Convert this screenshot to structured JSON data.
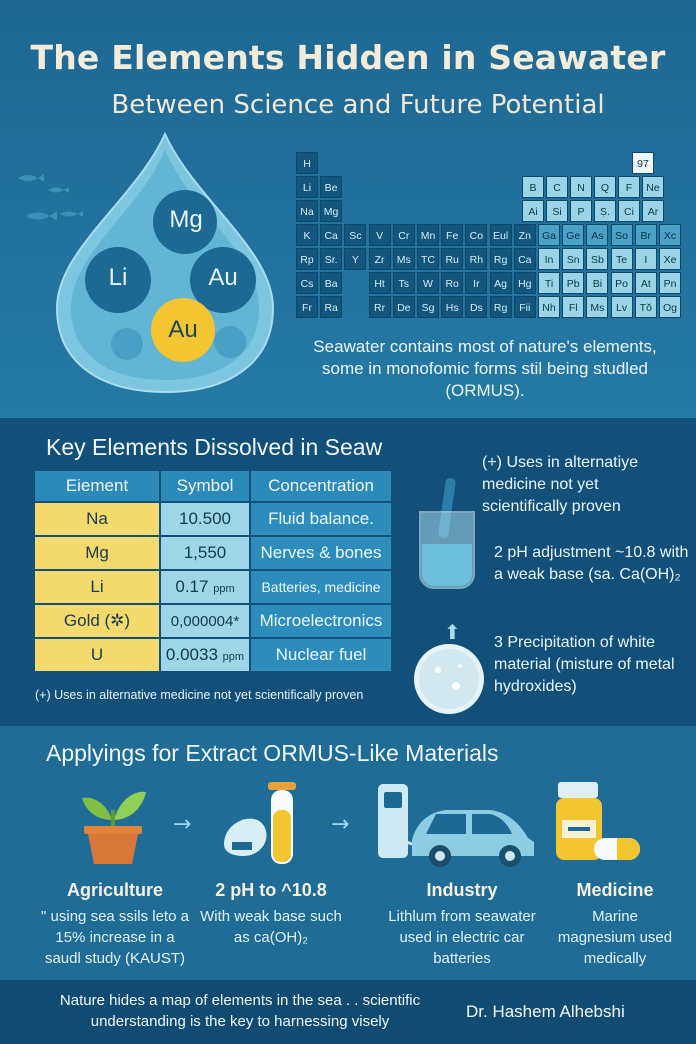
{
  "header": {
    "title": "The Elements Hidden in Seawater",
    "subtitle": "Between Science and Future Potential"
  },
  "drop": {
    "labels": [
      "Mg",
      "Li",
      "Au",
      "Au"
    ]
  },
  "periodic_table": {
    "corner_number": "97",
    "rows": [
      [
        "H"
      ],
      [
        "Li",
        "Be",
        "B",
        "C",
        "N",
        "Q",
        "F",
        "Ne"
      ],
      [
        "Na",
        "Mg",
        "Ai",
        "Si",
        "P",
        "Ṣ.",
        "Ci",
        "Ar"
      ],
      [
        "K",
        "Ca",
        "Sc",
        "V",
        "Cr",
        "Mn",
        "Fe",
        "Co",
        "Eul",
        "Zn",
        "Ga",
        "Ge",
        "As",
        "So",
        "Br",
        "Xc"
      ],
      [
        "Rp",
        "Sr.",
        "Y",
        "Zr",
        "Ms",
        "TC",
        "Ru",
        "Rh",
        "Rg",
        "Ca",
        "In",
        "Sn",
        "Sb",
        "Te",
        "I",
        "Xe"
      ],
      [
        "Cs",
        "Ba",
        "Ht",
        "Ts",
        "W",
        "Ro",
        "Ir",
        "Ag",
        "Hg",
        "Ti",
        "Pb",
        "Bi",
        "Po",
        "At",
        "Pn"
      ],
      [
        "Fr",
        "Ra",
        "Rr",
        "De",
        "Sg",
        "Hs",
        "Ds",
        "Rg",
        "Fii",
        "Nh",
        "Fl",
        "Ms",
        "Lv",
        "Tŏ",
        "Og"
      ]
    ]
  },
  "intro": {
    "text": "Seawater contains most of nature's elements, some in monofomic forms stil being studled (ORMUS)."
  },
  "key_elements": {
    "title": "Key Elements Dissolved in Seaw",
    "headers": [
      "Eiement",
      "Symbol",
      "Concentration"
    ],
    "rows": [
      {
        "element": "Na",
        "value": "10.500",
        "unit": "",
        "use": "Fluid balance."
      },
      {
        "element": "Mg",
        "value": "1,550",
        "unit": "",
        "use": "Nerves & bones"
      },
      {
        "element": "Li",
        "value": "0.17",
        "unit": "ppm",
        "use": "Batteries, medicine"
      },
      {
        "element": "Gold (✲)",
        "value": "0,000004*",
        "unit": "",
        "use": "Microelectronics"
      },
      {
        "element": "U",
        "value": "0.0033",
        "unit": "ppm",
        "use": "Nuclear fuel"
      }
    ],
    "footnote": "(+)  Uses in alternative medicine not yet scientifically proven"
  },
  "process_notes": [
    {
      "num": "(+)",
      "text": "Uses in alternatiye medicine not yet scientifically proven"
    },
    {
      "num": "2",
      "text": "pH adjustment ~10.8 with a weak base (sa. Ca(OH)₂"
    },
    {
      "num": "3",
      "text": "Precipitation of white material (misture of metal hydroxides)"
    }
  ],
  "applications": {
    "title": "Applyings for Extract ORMUS-Like Materials",
    "items": [
      {
        "heading": "Agriculture",
        "text": "\" using sea ssils leto a 15% increase in a saudl study (KAUST)"
      },
      {
        "heading": "2  pH to ^10.8",
        "text": "With weak base such as ca(OH)₂"
      },
      {
        "heading": "Industry",
        "text": "Lithlum from seawater used in electric car batteries"
      },
      {
        "heading": "Medicine",
        "text": "Marine magnesium used medically"
      }
    ]
  },
  "footer": {
    "text": "Nature hides a map of elements in the sea . . scientific understanding is the key to harnessing visely",
    "author": "Dr. Hashem Alhebshi"
  },
  "colors": {
    "background": "#1f6d97",
    "section_dark": "#124f79",
    "table_yellow": "#f4d96c",
    "table_light": "#9ed5e7",
    "table_blue": "#2c8dbc",
    "gold": "#f2c531"
  }
}
